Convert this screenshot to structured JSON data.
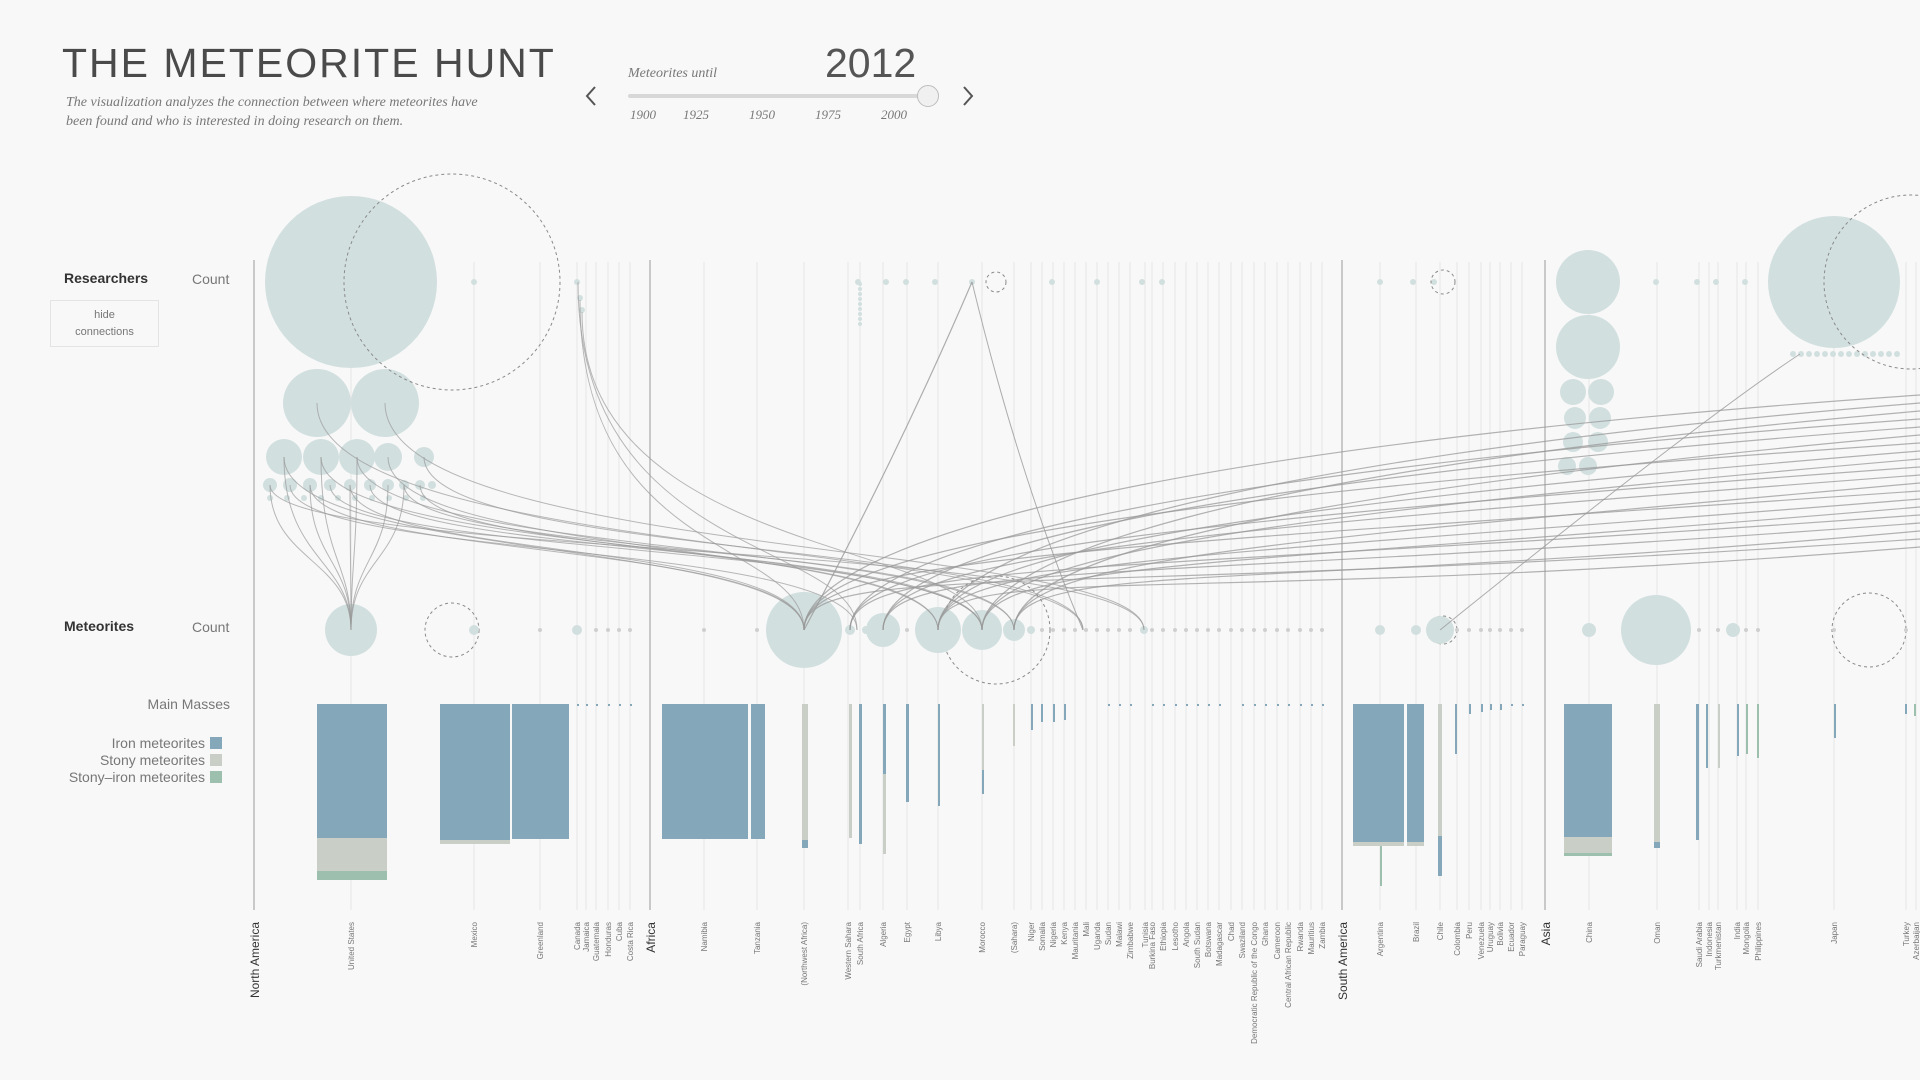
{
  "header": {
    "title": "THE METEORITE HUNT",
    "subtitle": "The visualization analyzes the connection between where meteorites have been found and who is interested in doing research on them."
  },
  "timeline": {
    "label": "Meteorites until",
    "year": "2012",
    "ticks": [
      "1900",
      "1925",
      "1950",
      "1975",
      "2000"
    ],
    "value": 2012
  },
  "rows": {
    "researchers": {
      "title": "Researchers",
      "count_label": "Count"
    },
    "hide_button": {
      "line1": "hide",
      "line2": "connections"
    },
    "meteorites": {
      "title": "Meteorites",
      "count_label": "Count"
    },
    "main_masses": "Main Masses"
  },
  "legend": [
    {
      "label": "Iron meteorites",
      "color": "#84a8ba"
    },
    {
      "label": "Stony meteorites",
      "color": "#c9cec6"
    },
    {
      "label": "Stony–iron meteorites",
      "color": "#9dbfad"
    }
  ],
  "colors": {
    "bubble": "#d2dfdf",
    "line": "#9a9a9a",
    "iron": "#84a8ba",
    "stony": "#c9cec6",
    "stony_iron": "#9dbfad"
  },
  "continents": [
    "North America",
    "Africa",
    "South America",
    "Asia"
  ],
  "countries": [
    "United States",
    "Mexico",
    "Greenland",
    "Canada",
    "Jamaica",
    "Guatemala",
    "Honduras",
    "Cuba",
    "Costa Rica",
    "Namibia",
    "Tanzania",
    "(Northwest Africa)",
    "Western Sahara",
    "South Africa",
    "Algeria",
    "Egypt",
    "Libya",
    "Morocco",
    "(Sahara)",
    "Niger",
    "Somalia",
    "Nigeria",
    "Kenya",
    "Mauritania",
    "Mali",
    "Uganda",
    "Sudan",
    "Malawi",
    "Zimbabwe",
    "Tunisia",
    "Burkina Faso",
    "Ethiopia",
    "Lesotho",
    "Angola",
    "South Sudan",
    "Botswana",
    "Madagascar",
    "Chad",
    "Swaziland",
    "Democratic Republic of the Congo",
    "Ghana",
    "Cameroon",
    "Central African Republic",
    "Rwanda",
    "Mauritius",
    "Zambia",
    "Argentina",
    "Brazil",
    "Chile",
    "Colombia",
    "Peru",
    "Venezuela",
    "Uruguay",
    "Bolivia",
    "Ecuador",
    "Paraguay",
    "China",
    "Oman",
    "Saudi Arabia",
    "Indonesia",
    "Turkmenistan",
    "India",
    "Mongolia",
    "Philippines",
    "Japan",
    "Turkey",
    "Azerbaijan"
  ]
}
